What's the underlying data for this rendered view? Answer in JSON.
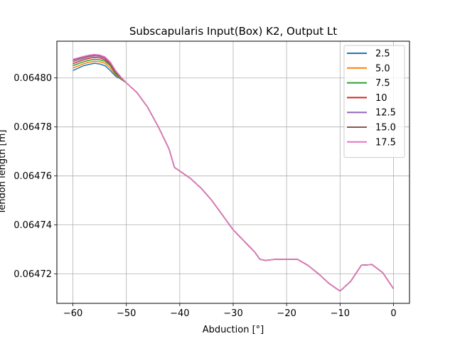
{
  "chart_data": {
    "type": "line",
    "title": "Subscapularis Input(Box) K2, Output Lt",
    "xlabel": "Abduction [°]",
    "ylabel": "Tendon length [m]",
    "xlim": [
      -63,
      3
    ],
    "ylim": [
      0.064708,
      0.064815
    ],
    "xticks": [
      -60,
      -50,
      -40,
      -30,
      -20,
      -10,
      0
    ],
    "xtick_labels": [
      "−60",
      "−50",
      "−40",
      "−30",
      "−20",
      "−10",
      "0"
    ],
    "yticks": [
      0.06472,
      0.06474,
      0.06476,
      0.06478,
      0.0648
    ],
    "ytick_labels": [
      "0.06472",
      "0.06474",
      "0.06476",
      "0.06478",
      "0.06480"
    ],
    "grid": true,
    "legend_position": "top-right",
    "x": [
      -60,
      -58,
      -57,
      -56,
      -55,
      -54,
      -53,
      -52,
      -51,
      -50,
      -48,
      -46,
      -44,
      -42,
      -41,
      -40,
      -38,
      -36,
      -34,
      -32,
      -30,
      -28,
      -26,
      -25,
      -24,
      -22,
      -20,
      -18,
      -16,
      -14,
      -12,
      -10,
      -8,
      -6,
      -4,
      -2,
      0
    ],
    "series": [
      {
        "name": "2.5",
        "color": "#1f77b4",
        "values": [
          0.064803,
          0.064805,
          0.0648055,
          0.064806,
          0.0648057,
          0.064805,
          0.064803,
          0.0648007,
          0.0647995,
          0.064798,
          0.064794,
          0.064788,
          0.06478,
          0.064771,
          0.0647635,
          0.064762,
          0.064759,
          0.064755,
          0.06475,
          0.064744,
          0.064738,
          0.0647335,
          0.064729,
          0.064726,
          0.0647255,
          0.064726,
          0.064726,
          0.064726,
          0.0647235,
          0.06472,
          0.064716,
          0.064713,
          0.064717,
          0.0647236,
          0.0647238,
          0.0647205,
          0.064714
        ]
      },
      {
        "name": "5.0",
        "color": "#ff7f0e",
        "values": [
          0.064804,
          0.0648058,
          0.0648064,
          0.0648068,
          0.0648066,
          0.064806,
          0.064804,
          0.0648012,
          0.0647997,
          0.064798,
          0.064794,
          0.064788,
          0.06478,
          0.064771,
          0.0647635,
          0.064762,
          0.064759,
          0.064755,
          0.06475,
          0.064744,
          0.064738,
          0.0647335,
          0.064729,
          0.064726,
          0.0647255,
          0.064726,
          0.064726,
          0.064726,
          0.0647235,
          0.06472,
          0.064716,
          0.064713,
          0.064717,
          0.0647236,
          0.0647238,
          0.0647205,
          0.064714
        ]
      },
      {
        "name": "7.5",
        "color": "#2ca02c",
        "values": [
          0.064805,
          0.0648066,
          0.0648072,
          0.0648076,
          0.0648074,
          0.0648068,
          0.064805,
          0.0648017,
          0.0647999,
          0.064798,
          0.064794,
          0.064788,
          0.06478,
          0.064771,
          0.0647635,
          0.064762,
          0.064759,
          0.064755,
          0.06475,
          0.064744,
          0.064738,
          0.0647335,
          0.064729,
          0.064726,
          0.0647255,
          0.064726,
          0.064726,
          0.064726,
          0.0647235,
          0.06472,
          0.064716,
          0.064713,
          0.064717,
          0.0647236,
          0.0647238,
          0.0647205,
          0.064714
        ]
      },
      {
        "name": "10",
        "color": "#d62728",
        "values": [
          0.0648058,
          0.0648074,
          0.064808,
          0.0648084,
          0.0648082,
          0.0648074,
          0.0648056,
          0.0648022,
          0.0648001,
          0.064798,
          0.064794,
          0.064788,
          0.06478,
          0.064771,
          0.0647635,
          0.064762,
          0.064759,
          0.064755,
          0.06475,
          0.064744,
          0.064738,
          0.0647335,
          0.064729,
          0.064726,
          0.0647255,
          0.064726,
          0.064726,
          0.064726,
          0.0647235,
          0.06472,
          0.064716,
          0.064713,
          0.064717,
          0.0647236,
          0.0647238,
          0.0647205,
          0.064714
        ]
      },
      {
        "name": "12.5",
        "color": "#9467bd",
        "values": [
          0.0648066,
          0.064808,
          0.0648086,
          0.064809,
          0.0648088,
          0.064808,
          0.064806,
          0.0648025,
          0.0648002,
          0.064798,
          0.064794,
          0.064788,
          0.06478,
          0.064771,
          0.0647635,
          0.064762,
          0.064759,
          0.064755,
          0.06475,
          0.064744,
          0.064738,
          0.0647335,
          0.064729,
          0.064726,
          0.0647255,
          0.064726,
          0.064726,
          0.064726,
          0.0647235,
          0.06472,
          0.064716,
          0.064713,
          0.064717,
          0.0647236,
          0.0647238,
          0.0647205,
          0.064714
        ]
      },
      {
        "name": "15.0",
        "color": "#8c564b",
        "values": [
          0.0648072,
          0.0648085,
          0.064809,
          0.0648094,
          0.0648092,
          0.0648084,
          0.0648063,
          0.0648028,
          0.0648003,
          0.064798,
          0.064794,
          0.064788,
          0.06478,
          0.064771,
          0.0647635,
          0.064762,
          0.064759,
          0.064755,
          0.06475,
          0.064744,
          0.064738,
          0.0647335,
          0.064729,
          0.064726,
          0.0647255,
          0.064726,
          0.064726,
          0.064726,
          0.0647235,
          0.06472,
          0.064716,
          0.064713,
          0.064717,
          0.0647236,
          0.0647238,
          0.0647205,
          0.064714
        ]
      },
      {
        "name": "17.5",
        "color": "#e377c2",
        "values": [
          0.0648076,
          0.0648088,
          0.0648093,
          0.0648096,
          0.0648094,
          0.0648086,
          0.0648065,
          0.064803,
          0.0648004,
          0.064798,
          0.064794,
          0.064788,
          0.06478,
          0.064771,
          0.0647635,
          0.064762,
          0.064759,
          0.064755,
          0.06475,
          0.064744,
          0.064738,
          0.0647335,
          0.064729,
          0.064726,
          0.0647255,
          0.064726,
          0.064726,
          0.064726,
          0.0647235,
          0.06472,
          0.064716,
          0.064713,
          0.064717,
          0.0647236,
          0.0647238,
          0.0647205,
          0.064714
        ]
      }
    ]
  }
}
